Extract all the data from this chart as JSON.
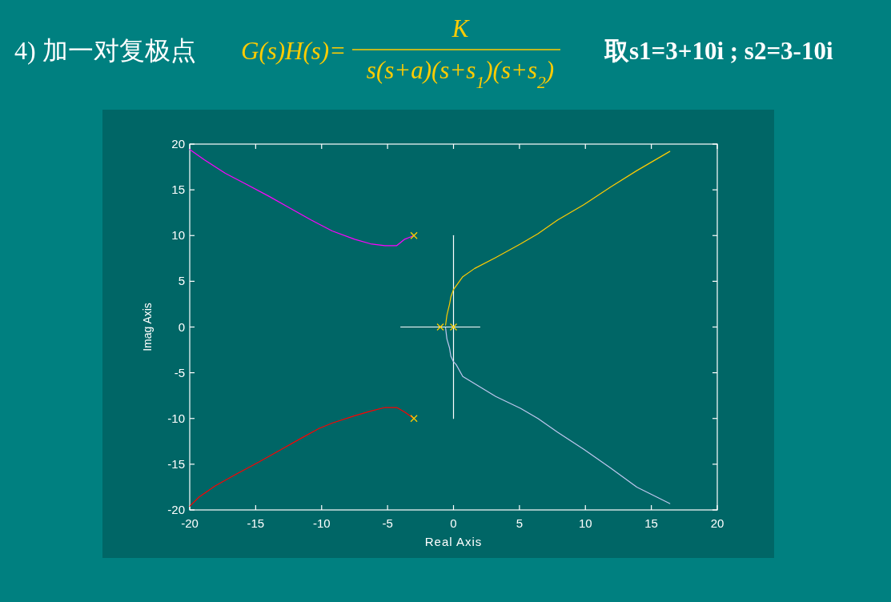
{
  "chart_data": {
    "type": "line",
    "title": "4) 加一对复极点",
    "annotations": [
      "G(s)H(s)=",
      "K",
      "s(s+a)(s+s$_{1}$)(s+s$_{2}$)",
      "取s1=3+10i ; s2=3-10i"
    ],
    "xlabel": "Real Axis",
    "ylabel": "Imag Axis",
    "xlim": [
      -20,
      20
    ],
    "ylim": [
      -20,
      20
    ],
    "xticks": [
      -20,
      -15,
      -10,
      -5,
      0,
      5,
      10,
      15,
      20
    ],
    "yticks": [
      -20,
      -15,
      -10,
      -5,
      0,
      5,
      10,
      15,
      20
    ],
    "grid": false,
    "series": [
      {
        "color": "#ffffff",
        "x": [
          -4,
          2
        ],
        "values": [
          0,
          0
        ]
      },
      {
        "color": "#ffffff",
        "x": [
          0,
          0
        ],
        "values": [
          10,
          -10
        ]
      },
      {
        "color": "#ff00ff",
        "x": [
          -3.0,
          -3.7,
          -4.3,
          -5.2,
          -6.3,
          -7.5,
          -9.2,
          -10.8,
          -12.4,
          -14.0,
          -15.7,
          -17.3,
          -18.9,
          -20.0
        ],
        "values": [
          10.0,
          9.6,
          8.9,
          8.9,
          9.1,
          9.6,
          10.5,
          11.7,
          13.0,
          14.3,
          15.6,
          16.8,
          18.3,
          19.4
        ]
      },
      {
        "color": "#ff0000",
        "x": [
          -3.0,
          -3.7,
          -4.3,
          -5.2,
          -6.3,
          -7.5,
          -9.2,
          -10.2,
          -11.6,
          -13.2,
          -14.8,
          -16.5,
          -18.1,
          -19.3,
          -20.0
        ],
        "values": [
          -10.0,
          -9.3,
          -8.8,
          -8.8,
          -9.2,
          -9.7,
          -10.5,
          -11.1,
          -12.2,
          -13.5,
          -14.8,
          -16.1,
          -17.4,
          -18.6,
          -19.6
        ]
      },
      {
        "color": "#ffcc00",
        "x": [
          -0.6,
          -0.5,
          -0.3,
          -0.2,
          0.0,
          0.2,
          0.7,
          1.6,
          3.2,
          5.1,
          6.4,
          7.9,
          9.9,
          11.9,
          13.9,
          16.4
        ],
        "values": [
          0.2,
          1.3,
          2.5,
          3.3,
          4.1,
          4.5,
          5.5,
          6.4,
          7.6,
          9.1,
          10.2,
          11.7,
          13.4,
          15.3,
          17.1,
          19.2
        ]
      },
      {
        "color": "#c0c8f0",
        "x": [
          -0.6,
          -0.5,
          -0.3,
          -0.2,
          0.0,
          0.2,
          0.7,
          1.6,
          3.2,
          5.1,
          6.4,
          7.9,
          9.9,
          11.9,
          13.9,
          16.4
        ],
        "values": [
          -0.1,
          -1.3,
          -2.3,
          -3.2,
          -3.8,
          -4.1,
          -5.4,
          -6.2,
          -7.6,
          -8.9,
          -10.0,
          -11.5,
          -13.4,
          -15.4,
          -17.5,
          -19.3
        ]
      },
      {
        "type": "scatter",
        "color": "#ffcc00",
        "marker": "cross",
        "x": [
          -3,
          -3,
          -1,
          0
        ],
        "values": [
          10,
          -10,
          0,
          0
        ]
      }
    ]
  }
}
